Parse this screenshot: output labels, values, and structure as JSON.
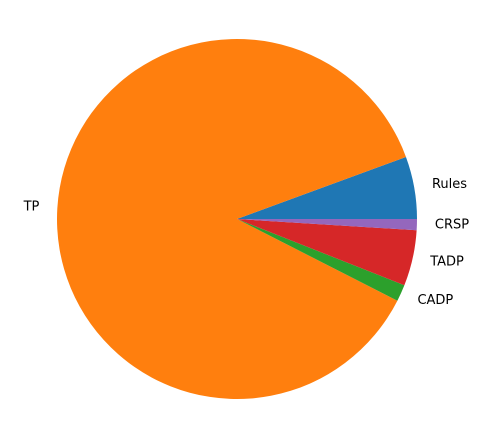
{
  "chart_data": {
    "type": "pie",
    "title": "",
    "labels": [
      "Rules",
      "TP",
      "CADP",
      "TADP",
      "CRSP"
    ],
    "values": [
      5.6,
      86.9,
      1.5,
      5.0,
      1.0
    ],
    "colors": [
      "#1f77b4",
      "#ff7f0e",
      "#2ca02c",
      "#d62728",
      "#9467bd"
    ],
    "start_angle": 0,
    "direction": "counterclockwise",
    "legend": "none"
  }
}
